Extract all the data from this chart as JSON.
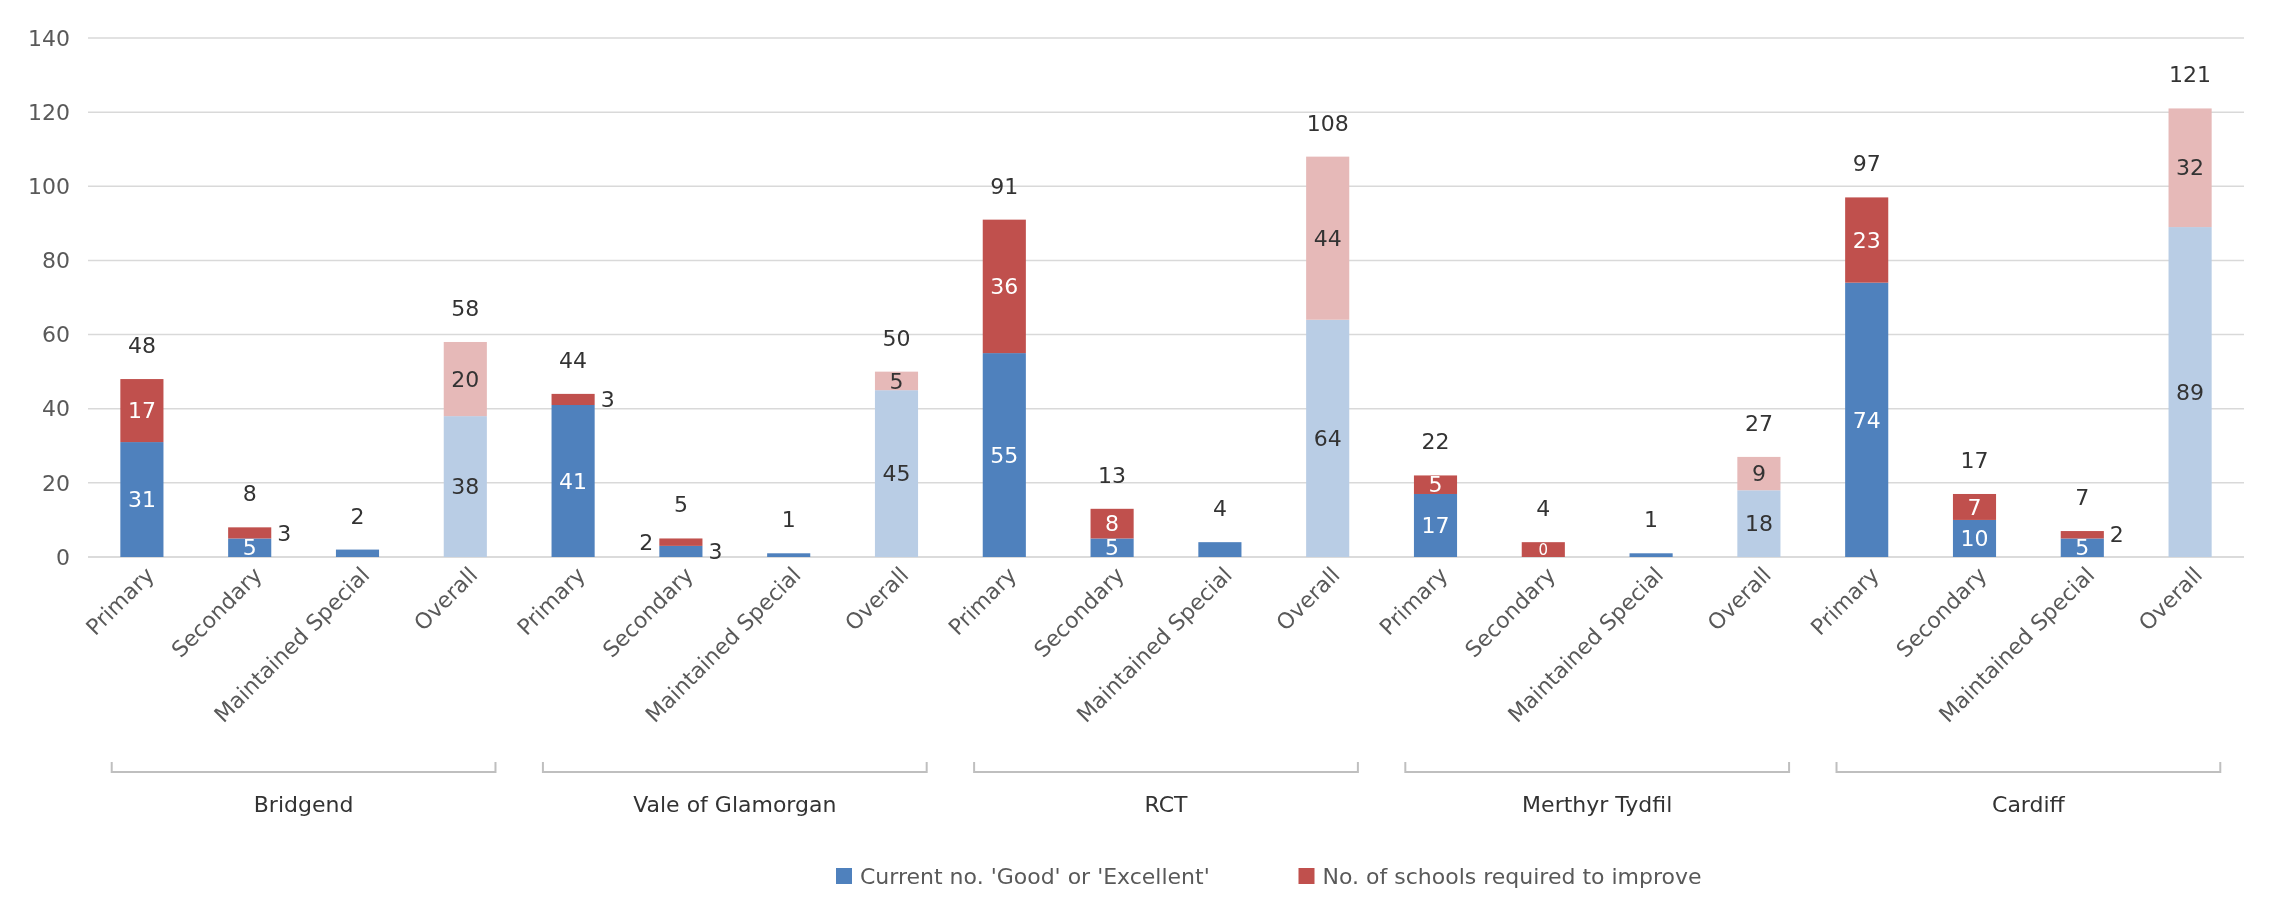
{
  "chart_data": {
    "type": "bar",
    "stacked": true,
    "categories": [
      "Primary",
      "Secondary",
      "Maintained Special",
      "Overall",
      "Primary",
      "Secondary",
      "Maintained Special",
      "Overall",
      "Primary",
      "Secondary",
      "Maintained Special",
      "Overall",
      "Primary",
      "Secondary",
      "Maintained Special",
      "Overall",
      "Primary",
      "Secondary",
      "Maintained Special",
      "Overall"
    ],
    "series": [
      {
        "name": "Current no. 'Good' or 'Excellent'",
        "color": "#4f81bd",
        "colors": [
          "#4f81bd",
          "#4f81bd",
          "#4f81bd",
          "#b9cde5",
          "#4f81bd",
          "#4f81bd",
          "#4f81bd",
          "#b9cde5",
          "#4f81bd",
          "#4f81bd",
          "#4f81bd",
          "#b9cde5",
          "#4f81bd",
          "#4f81bd",
          "#4f81bd",
          "#b9cde5",
          "#4f81bd",
          "#4f81bd",
          "#4f81bd",
          "#b9cde5"
        ],
        "values": [
          31,
          5,
          2,
          38,
          41,
          3,
          1,
          45,
          55,
          5,
          4,
          64,
          17,
          0,
          1,
          18,
          74,
          10,
          5,
          89
        ],
        "value_labels": [
          "31",
          "5",
          null,
          "38",
          "41",
          "3",
          null,
          "45",
          "55",
          "5",
          null,
          "64",
          "17",
          "0",
          null,
          "18",
          "74",
          "10",
          "5",
          "89"
        ]
      },
      {
        "name": "No. of schools required to improve",
        "color": "#c0504d",
        "colors": [
          "#c0504d",
          "#c0504d",
          "#c0504d",
          "#e6b9b8",
          "#c0504d",
          "#c0504d",
          "#c0504d",
          "#e6b9b8",
          "#c0504d",
          "#c0504d",
          "#c0504d",
          "#e6b9b8",
          "#c0504d",
          "#c0504d",
          "#c0504d",
          "#e6b9b8",
          "#c0504d",
          "#c0504d",
          "#c0504d",
          "#e6b9b8"
        ],
        "values": [
          17,
          3,
          0,
          20,
          3,
          2,
          0,
          5,
          36,
          8,
          0,
          44,
          5,
          4,
          0,
          9,
          23,
          7,
          2,
          32
        ],
        "value_labels": [
          "17",
          "3",
          null,
          "20",
          "3",
          "2",
          null,
          "5",
          "36",
          "8",
          null,
          "44",
          "5",
          null,
          null,
          "9",
          "23",
          "7",
          "2",
          "32"
        ]
      }
    ],
    "totals": [
      "48",
      "8",
      "2",
      "58",
      "44",
      "5",
      "1",
      "50",
      "91",
      "13",
      "4",
      "108",
      "22",
      "4",
      "1",
      "27",
      "97",
      "17",
      "7",
      "121"
    ],
    "annotations": [
      "Bridgend",
      "Vale of Glamorgan",
      "RCT",
      "Merthyr Tydfil",
      "Cardiff"
    ],
    "ylim": [
      0,
      140
    ],
    "yticks": [
      0,
      20,
      40,
      60,
      80,
      100,
      120,
      140
    ],
    "grid": "y",
    "legend": "bottom"
  }
}
